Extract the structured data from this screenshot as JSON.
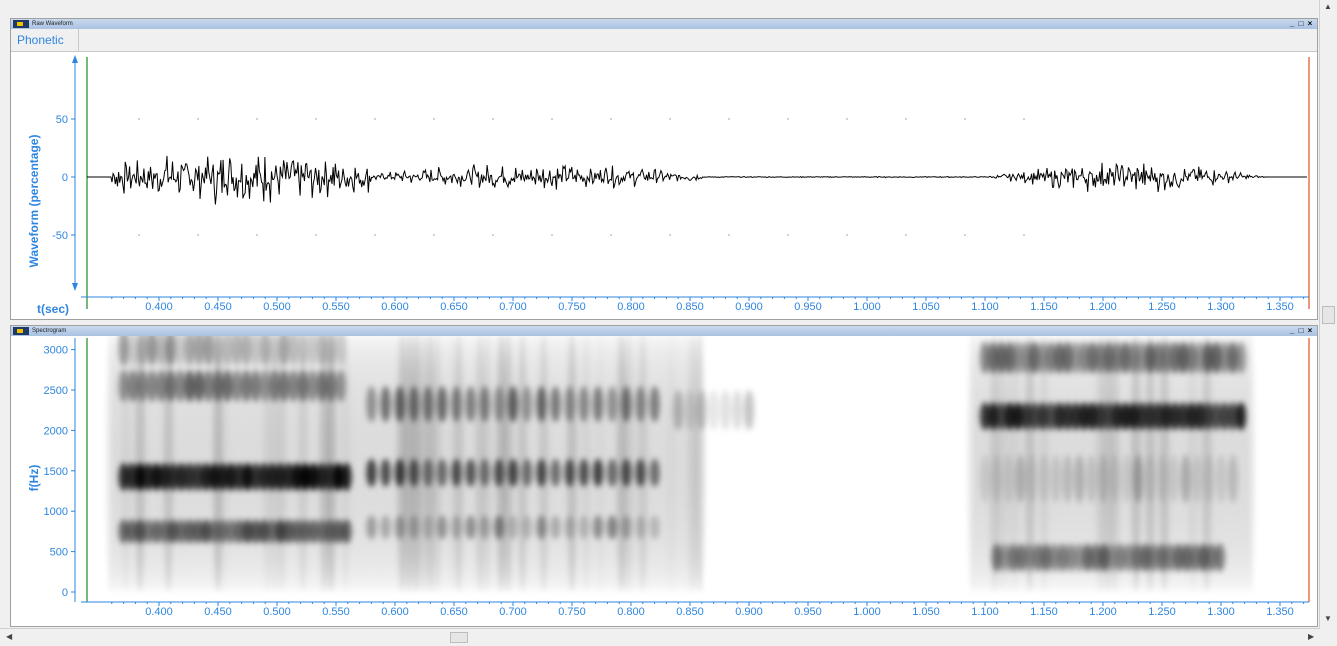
{
  "waveform_panel": {
    "title": "Raw Waveform",
    "phonetic_label": "Phonetic",
    "y_axis_label": "Waveform (percentage)",
    "x_axis_label": "t(sec)",
    "y_ticks": [
      "50",
      "0",
      "-50"
    ]
  },
  "spectrogram_panel": {
    "title": "Spectrogram",
    "y_axis_label": "f(Hz)",
    "y_ticks": [
      "3000",
      "2500",
      "2000",
      "1500",
      "1000",
      "500",
      "0"
    ]
  },
  "window_buttons": {
    "minimize": "_",
    "restore": "□",
    "close": "×"
  },
  "time_ticks": [
    "0.400",
    "0.450",
    "0.500",
    "0.550",
    "0.600",
    "0.650",
    "0.700",
    "0.750",
    "0.800",
    "0.850",
    "0.900",
    "0.950",
    "1.000",
    "1.050",
    "1.100",
    "1.150",
    "1.200",
    "1.250",
    "1.300",
    "1.350"
  ],
  "colors": {
    "axis_blue": "#2e86e0",
    "left_cursor": "#1f8a1f",
    "right_cursor": "#e0502a",
    "panel_title_bar": "#b8cde8"
  }
}
